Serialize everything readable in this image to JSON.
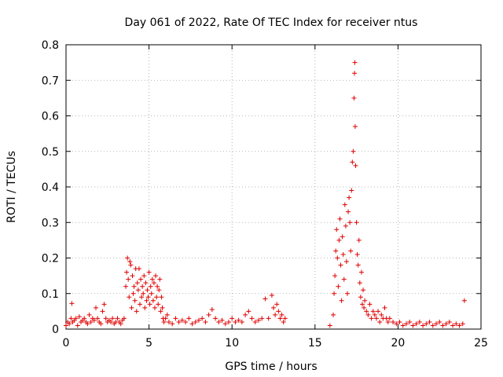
{
  "chart_data": {
    "type": "scatter",
    "title": "Day 061 of 2022, Rate Of TEC Index for receiver ntus",
    "xlabel": "GPS time / hours",
    "ylabel": "ROTI / TECUs",
    "xlim": [
      0,
      25
    ],
    "ylim": [
      0,
      0.8
    ],
    "xticks": [
      0,
      5,
      10,
      15,
      20,
      25
    ],
    "yticks": [
      0,
      0.1,
      0.2,
      0.3,
      0.4,
      0.5,
      0.6,
      0.7,
      0.8
    ],
    "grid": true,
    "marker": "+",
    "color": "#e00000",
    "series": [
      {
        "values_xy": [
          [
            0.0,
            0.01
          ],
          [
            0.1,
            0.02
          ],
          [
            0.2,
            0.015
          ],
          [
            0.3,
            0.03
          ],
          [
            0.35,
            0.072
          ],
          [
            0.4,
            0.02
          ],
          [
            0.5,
            0.025
          ],
          [
            0.6,
            0.03
          ],
          [
            0.7,
            0.01
          ],
          [
            0.8,
            0.035
          ],
          [
            0.9,
            0.02
          ],
          [
            1.0,
            0.025
          ],
          [
            1.1,
            0.03
          ],
          [
            1.2,
            0.02
          ],
          [
            1.3,
            0.015
          ],
          [
            1.4,
            0.04
          ],
          [
            1.5,
            0.02
          ],
          [
            1.6,
            0.03
          ],
          [
            1.7,
            0.025
          ],
          [
            1.8,
            0.06
          ],
          [
            1.9,
            0.03
          ],
          [
            2.0,
            0.02
          ],
          [
            2.1,
            0.015
          ],
          [
            2.2,
            0.05
          ],
          [
            2.3,
            0.07
          ],
          [
            2.4,
            0.03
          ],
          [
            2.5,
            0.02
          ],
          [
            2.6,
            0.025
          ],
          [
            2.7,
            0.02
          ],
          [
            2.8,
            0.03
          ],
          [
            2.9,
            0.015
          ],
          [
            3.0,
            0.02
          ],
          [
            3.1,
            0.03
          ],
          [
            3.2,
            0.02
          ],
          [
            3.3,
            0.015
          ],
          [
            3.4,
            0.025
          ],
          [
            3.5,
            0.03
          ],
          [
            3.6,
            0.12
          ],
          [
            3.65,
            0.16
          ],
          [
            3.7,
            0.2
          ],
          [
            3.75,
            0.14
          ],
          [
            3.8,
            0.09
          ],
          [
            3.85,
            0.19
          ],
          [
            3.9,
            0.18
          ],
          [
            3.95,
            0.06
          ],
          [
            4.0,
            0.15
          ],
          [
            4.05,
            0.1
          ],
          [
            4.1,
            0.12
          ],
          [
            4.15,
            0.08
          ],
          [
            4.2,
            0.17
          ],
          [
            4.25,
            0.05
          ],
          [
            4.3,
            0.13
          ],
          [
            4.35,
            0.11
          ],
          [
            4.4,
            0.17
          ],
          [
            4.45,
            0.07
          ],
          [
            4.5,
            0.14
          ],
          [
            4.55,
            0.09
          ],
          [
            4.6,
            0.12
          ],
          [
            4.65,
            0.1
          ],
          [
            4.7,
            0.15
          ],
          [
            4.75,
            0.06
          ],
          [
            4.8,
            0.13
          ],
          [
            4.85,
            0.08
          ],
          [
            4.9,
            0.11
          ],
          [
            4.95,
            0.09
          ],
          [
            5.0,
            0.16
          ],
          [
            5.05,
            0.07
          ],
          [
            5.1,
            0.12
          ],
          [
            5.15,
            0.1
          ],
          [
            5.2,
            0.14
          ],
          [
            5.25,
            0.08
          ],
          [
            5.3,
            0.13
          ],
          [
            5.35,
            0.06
          ],
          [
            5.4,
            0.15
          ],
          [
            5.45,
            0.09
          ],
          [
            5.5,
            0.12
          ],
          [
            5.55,
            0.07
          ],
          [
            5.6,
            0.11
          ],
          [
            5.65,
            0.14
          ],
          [
            5.7,
            0.05
          ],
          [
            5.75,
            0.09
          ],
          [
            5.8,
            0.06
          ],
          [
            5.85,
            0.03
          ],
          [
            5.9,
            0.02
          ],
          [
            6.0,
            0.03
          ],
          [
            6.1,
            0.04
          ],
          [
            6.2,
            0.02
          ],
          [
            6.4,
            0.015
          ],
          [
            6.6,
            0.03
          ],
          [
            6.8,
            0.02
          ],
          [
            7.0,
            0.025
          ],
          [
            7.2,
            0.02
          ],
          [
            7.4,
            0.03
          ],
          [
            7.6,
            0.015
          ],
          [
            7.8,
            0.02
          ],
          [
            8.0,
            0.025
          ],
          [
            8.2,
            0.03
          ],
          [
            8.4,
            0.02
          ],
          [
            8.6,
            0.04
          ],
          [
            8.8,
            0.055
          ],
          [
            9.0,
            0.03
          ],
          [
            9.2,
            0.02
          ],
          [
            9.4,
            0.025
          ],
          [
            9.6,
            0.015
          ],
          [
            9.8,
            0.02
          ],
          [
            10.0,
            0.03
          ],
          [
            10.2,
            0.02
          ],
          [
            10.4,
            0.025
          ],
          [
            10.6,
            0.02
          ],
          [
            10.8,
            0.04
          ],
          [
            11.0,
            0.05
          ],
          [
            11.2,
            0.03
          ],
          [
            11.4,
            0.02
          ],
          [
            11.6,
            0.025
          ],
          [
            11.8,
            0.03
          ],
          [
            12.0,
            0.085
          ],
          [
            12.2,
            0.03
          ],
          [
            12.4,
            0.095
          ],
          [
            12.5,
            0.06
          ],
          [
            12.6,
            0.04
          ],
          [
            12.7,
            0.07
          ],
          [
            12.8,
            0.05
          ],
          [
            12.9,
            0.03
          ],
          [
            13.0,
            0.04
          ],
          [
            13.1,
            0.02
          ],
          [
            13.2,
            0.03
          ],
          [
            15.9,
            0.01
          ],
          [
            16.1,
            0.04
          ],
          [
            16.15,
            0.1
          ],
          [
            16.2,
            0.15
          ],
          [
            16.25,
            0.22
          ],
          [
            16.3,
            0.28
          ],
          [
            16.35,
            0.2
          ],
          [
            16.4,
            0.12
          ],
          [
            16.45,
            0.25
          ],
          [
            16.5,
            0.31
          ],
          [
            16.55,
            0.18
          ],
          [
            16.6,
            0.08
          ],
          [
            16.65,
            0.26
          ],
          [
            16.7,
            0.21
          ],
          [
            16.75,
            0.14
          ],
          [
            16.8,
            0.35
          ],
          [
            16.85,
            0.29
          ],
          [
            16.9,
            0.19
          ],
          [
            16.95,
            0.1
          ],
          [
            17.0,
            0.33
          ],
          [
            17.05,
            0.37
          ],
          [
            17.1,
            0.3
          ],
          [
            17.15,
            0.22
          ],
          [
            17.2,
            0.39
          ],
          [
            17.25,
            0.47
          ],
          [
            17.3,
            0.5
          ],
          [
            17.35,
            0.65
          ],
          [
            17.38,
            0.72
          ],
          [
            17.4,
            0.75
          ],
          [
            17.42,
            0.57
          ],
          [
            17.45,
            0.46
          ],
          [
            17.5,
            0.3
          ],
          [
            17.55,
            0.21
          ],
          [
            17.6,
            0.18
          ],
          [
            17.65,
            0.25
          ],
          [
            17.7,
            0.13
          ],
          [
            17.75,
            0.09
          ],
          [
            17.8,
            0.16
          ],
          [
            17.85,
            0.07
          ],
          [
            17.9,
            0.11
          ],
          [
            17.95,
            0.06
          ],
          [
            18.0,
            0.08
          ],
          [
            18.1,
            0.05
          ],
          [
            18.2,
            0.04
          ],
          [
            18.3,
            0.07
          ],
          [
            18.4,
            0.03
          ],
          [
            18.5,
            0.05
          ],
          [
            18.6,
            0.04
          ],
          [
            18.7,
            0.03
          ],
          [
            18.8,
            0.05
          ],
          [
            18.9,
            0.02
          ],
          [
            19.0,
            0.04
          ],
          [
            19.1,
            0.03
          ],
          [
            19.2,
            0.06
          ],
          [
            19.3,
            0.03
          ],
          [
            19.4,
            0.02
          ],
          [
            19.5,
            0.03
          ],
          [
            19.7,
            0.02
          ],
          [
            19.9,
            0.015
          ],
          [
            20.1,
            0.02
          ],
          [
            20.3,
            0.01
          ],
          [
            20.5,
            0.015
          ],
          [
            20.7,
            0.02
          ],
          [
            20.9,
            0.01
          ],
          [
            21.1,
            0.015
          ],
          [
            21.3,
            0.02
          ],
          [
            21.5,
            0.01
          ],
          [
            21.7,
            0.015
          ],
          [
            21.9,
            0.02
          ],
          [
            22.1,
            0.01
          ],
          [
            22.3,
            0.015
          ],
          [
            22.5,
            0.02
          ],
          [
            22.7,
            0.01
          ],
          [
            22.9,
            0.015
          ],
          [
            23.1,
            0.02
          ],
          [
            23.3,
            0.01
          ],
          [
            23.5,
            0.015
          ],
          [
            23.7,
            0.01
          ],
          [
            23.9,
            0.015
          ],
          [
            24.0,
            0.08
          ]
        ]
      }
    ]
  }
}
